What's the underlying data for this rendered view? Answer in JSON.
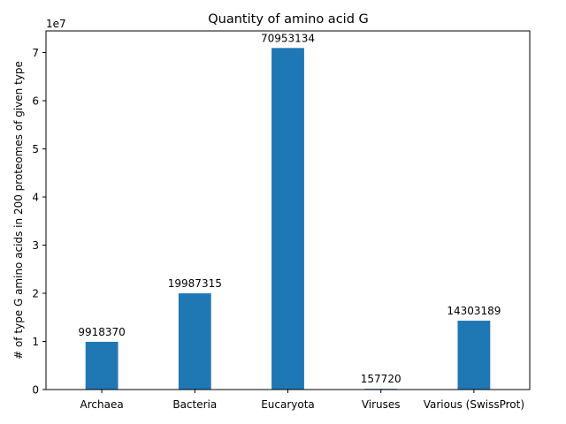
{
  "chart_data": {
    "type": "bar",
    "title": "Quantity of amino acid G",
    "xlabel": "",
    "ylabel": "# of type G amino acids in 200 proteomes of given type",
    "offset_label": "1e7",
    "categories": [
      "Archaea",
      "Bacteria",
      "Eucaryota",
      "Viruses",
      "Various (SwissProt)"
    ],
    "values": [
      9918370,
      19987315,
      70953134,
      157720,
      14303189
    ],
    "value_labels": [
      "9918370",
      "19987315",
      "70953134",
      "157720",
      "14303189"
    ],
    "ylim": [
      0,
      74500000
    ],
    "yticks": [
      0,
      10000000,
      20000000,
      30000000,
      40000000,
      50000000,
      60000000,
      70000000
    ],
    "ytick_labels": [
      "0",
      "1",
      "2",
      "3",
      "4",
      "5",
      "6",
      "7"
    ],
    "bar_color": "#1f77b4",
    "grid": false,
    "legend": "none"
  }
}
